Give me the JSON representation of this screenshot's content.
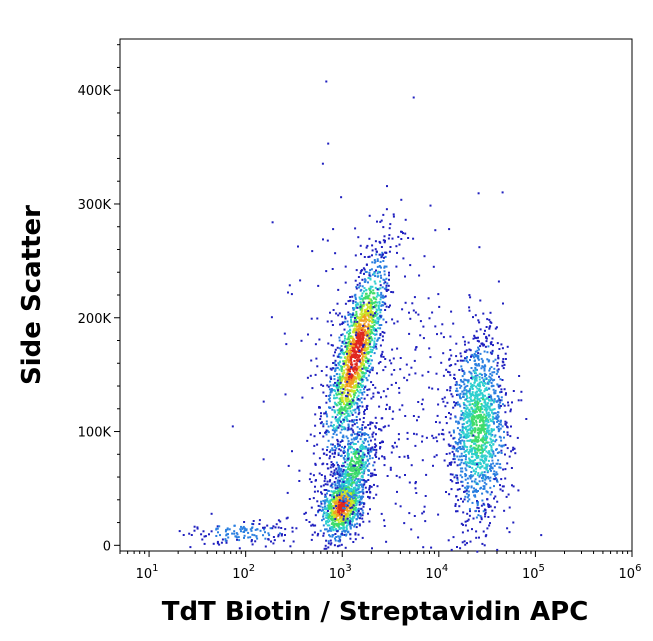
{
  "chart_data": {
    "type": "scatter",
    "subtype": "flow-cytometry-density-dot-plot",
    "xlabel": "TdT Biotin / Streptavidin APC",
    "ylabel": "Side Scatter",
    "x_scale": "log",
    "xlim": [
      5,
      1000000
    ],
    "ylim": [
      -5000,
      445000
    ],
    "x_ticks": [
      {
        "value": 10,
        "base": "10",
        "exp": "1"
      },
      {
        "value": 100,
        "base": "10",
        "exp": "2"
      },
      {
        "value": 1000,
        "base": "10",
        "exp": "3"
      },
      {
        "value": 10000,
        "base": "10",
        "exp": "4"
      },
      {
        "value": 100000,
        "base": "10",
        "exp": "5"
      },
      {
        "value": 1000000,
        "base": "10",
        "exp": "6"
      }
    ],
    "y_ticks": [
      {
        "value": 0,
        "label": "0"
      },
      {
        "value": 100000,
        "label": "100K"
      },
      {
        "value": 200000,
        "label": "200K"
      },
      {
        "value": 300000,
        "label": "300K"
      },
      {
        "value": 400000,
        "label": "400K"
      }
    ],
    "grid": false,
    "legend": "none",
    "density_colormap": [
      "#1f1fbf",
      "#2a7fe0",
      "#2ecfcf",
      "#3fdc6a",
      "#c8e62a",
      "#f2a020",
      "#e0281e"
    ],
    "populations": [
      {
        "label": "",
        "x_log_center": 3.14,
        "y_center": 170000,
        "x_log_sd": 0.1,
        "y_sd": 42000,
        "slope": 0.28,
        "n": 1600,
        "peak": 0.95
      },
      {
        "label": "",
        "x_log_center": 2.99,
        "y_center": 35000,
        "x_log_sd": 0.11,
        "y_sd": 14000,
        "slope": 0.25,
        "n": 900,
        "peak": 0.9
      },
      {
        "label": "",
        "x_log_center": 3.12,
        "y_center": 70000,
        "x_log_sd": 0.1,
        "y_sd": 20000,
        "slope": 0.2,
        "n": 500,
        "peak": 0.5
      },
      {
        "label": "",
        "x_log_center": 4.4,
        "y_center": 105000,
        "x_log_sd": 0.15,
        "y_sd": 42000,
        "slope": 0,
        "n": 1500,
        "peak": 0.45
      },
      {
        "label": "",
        "x_log_center": 1.95,
        "y_center": 12000,
        "x_log_sd": 0.28,
        "y_sd": 6000,
        "slope": 0,
        "n": 140,
        "peak": 0.2
      },
      {
        "label": "",
        "x_log_center": 3.35,
        "y_center": 140000,
        "x_log_sd": 0.45,
        "y_sd": 80000,
        "slope": 0,
        "n": 450,
        "peak": 0.05
      }
    ]
  }
}
